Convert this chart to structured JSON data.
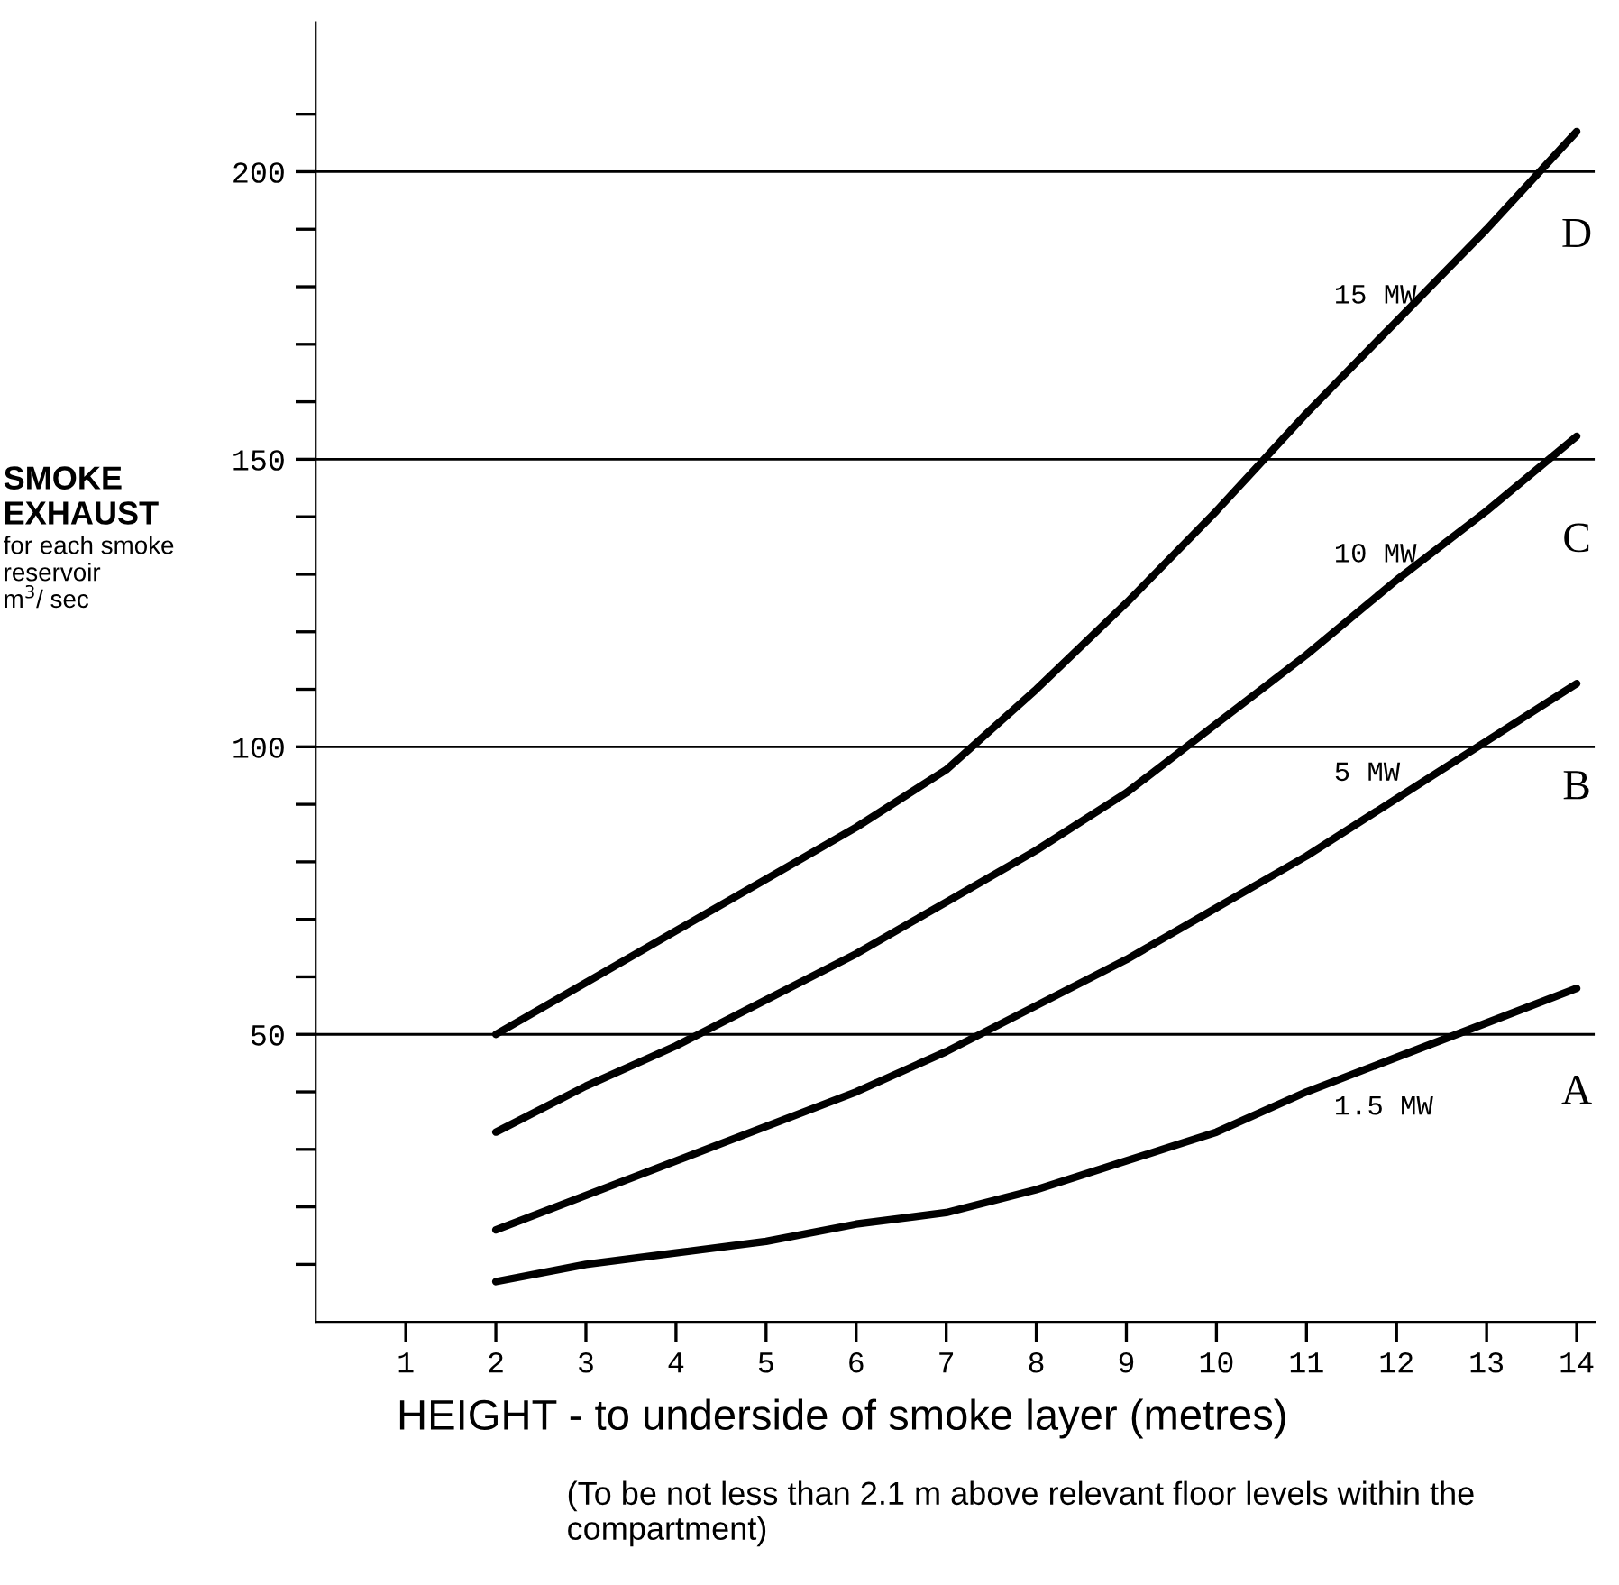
{
  "chart_data": {
    "type": "line",
    "xlabel": "HEIGHT - to underside of smoke layer (metres)",
    "ylabel": "SMOKE\nEXHAUST\nfor each smoke\nreservoir\nm$^{3}$/ sec",
    "x": [
      2,
      3,
      4,
      5,
      6,
      7,
      8,
      9,
      10,
      11,
      12,
      13,
      14
    ],
    "series": [
      {
        "name": "15 MW",
        "color": "#000000",
        "values": [
          50,
          59,
          68,
          77,
          86,
          96,
          110,
          125,
          141,
          158,
          174,
          190,
          207
        ]
      },
      {
        "name": "10 MW",
        "color": "#000000",
        "values": [
          33,
          41,
          48,
          56,
          64,
          73,
          82,
          92,
          104,
          116,
          129,
          141,
          154
        ]
      },
      {
        "name": "5 MW",
        "color": "#000000",
        "values": [
          16,
          22,
          28,
          34,
          40,
          47,
          55,
          63,
          72,
          81,
          91,
          101,
          111
        ]
      },
      {
        "name": "1.5 MW",
        "color": "#000000",
        "values": [
          7,
          10,
          12,
          14,
          17,
          19,
          23,
          28,
          33,
          40,
          46,
          52,
          58
        ]
      }
    ],
    "annotations": [
      "D",
      "C",
      "B",
      "A",
      "(To be not less than 2.1 m above relevant floor levels within the compartment)"
    ],
    "ref_lines": [
      {
        "axis": "y",
        "value": 50
      },
      {
        "axis": "y",
        "value": 100
      },
      {
        "axis": "y",
        "value": 150
      },
      {
        "axis": "y",
        "value": 200
      }
    ],
    "xlim": [
      0,
      14.2
    ],
    "ylim": [
      0,
      226
    ],
    "xticks": [
      1,
      2,
      3,
      4,
      5,
      6,
      7,
      8,
      9,
      10,
      11,
      12,
      13,
      14
    ],
    "yticks": [
      {
        "value": 10,
        "label": null
      },
      {
        "value": 20,
        "label": null
      },
      {
        "value": 30,
        "label": null
      },
      {
        "value": 40,
        "label": null
      },
      50,
      {
        "value": 60,
        "label": null
      },
      {
        "value": 70,
        "label": null
      },
      {
        "value": 80,
        "label": null
      },
      {
        "value": 90,
        "label": null
      },
      100,
      {
        "value": 110,
        "label": null
      },
      {
        "value": 120,
        "label": null
      },
      {
        "value": 130,
        "label": null
      },
      {
        "value": 140,
        "label": null
      },
      150,
      {
        "value": 160,
        "label": null
      },
      {
        "value": 170,
        "label": null
      },
      {
        "value": 180,
        "label": null
      },
      {
        "value": 190,
        "label": null
      },
      200,
      {
        "value": 210,
        "label": null
      }
    ],
    "grid": false,
    "legend": false,
    "marker": "none",
    "line_style": "solid"
  }
}
